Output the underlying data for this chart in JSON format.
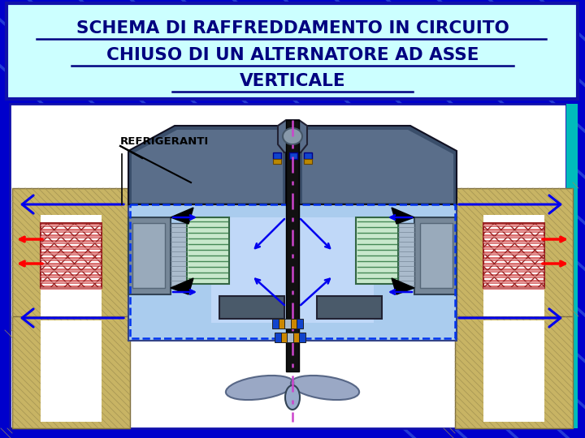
{
  "title_line1": "SCHEMA DI RAFFREDDAMENTO IN CIRCUITO",
  "title_line2": "CHIUSO DI UN ALTERNATORE AD ASSE",
  "title_line3": "VERTICALE",
  "label_refrigeranti": "REFRIGERANTI",
  "bg_color": "#0000cc",
  "title_box_bg": "#ccffff",
  "title_box_border": "#000080",
  "diagram_bg": "#ffffff",
  "hatched_color": "#c8b464",
  "center_blue": "#aaccff",
  "shaft_color": "#111111",
  "pink_dashed": "#cc44cc",
  "red_arrow": "#ff0000",
  "blue_arrow": "#0000ee",
  "teal_right": "#00bbbb",
  "dark_part": "#445577",
  "mid_part": "#6688aa",
  "light_part": "#99aacc"
}
